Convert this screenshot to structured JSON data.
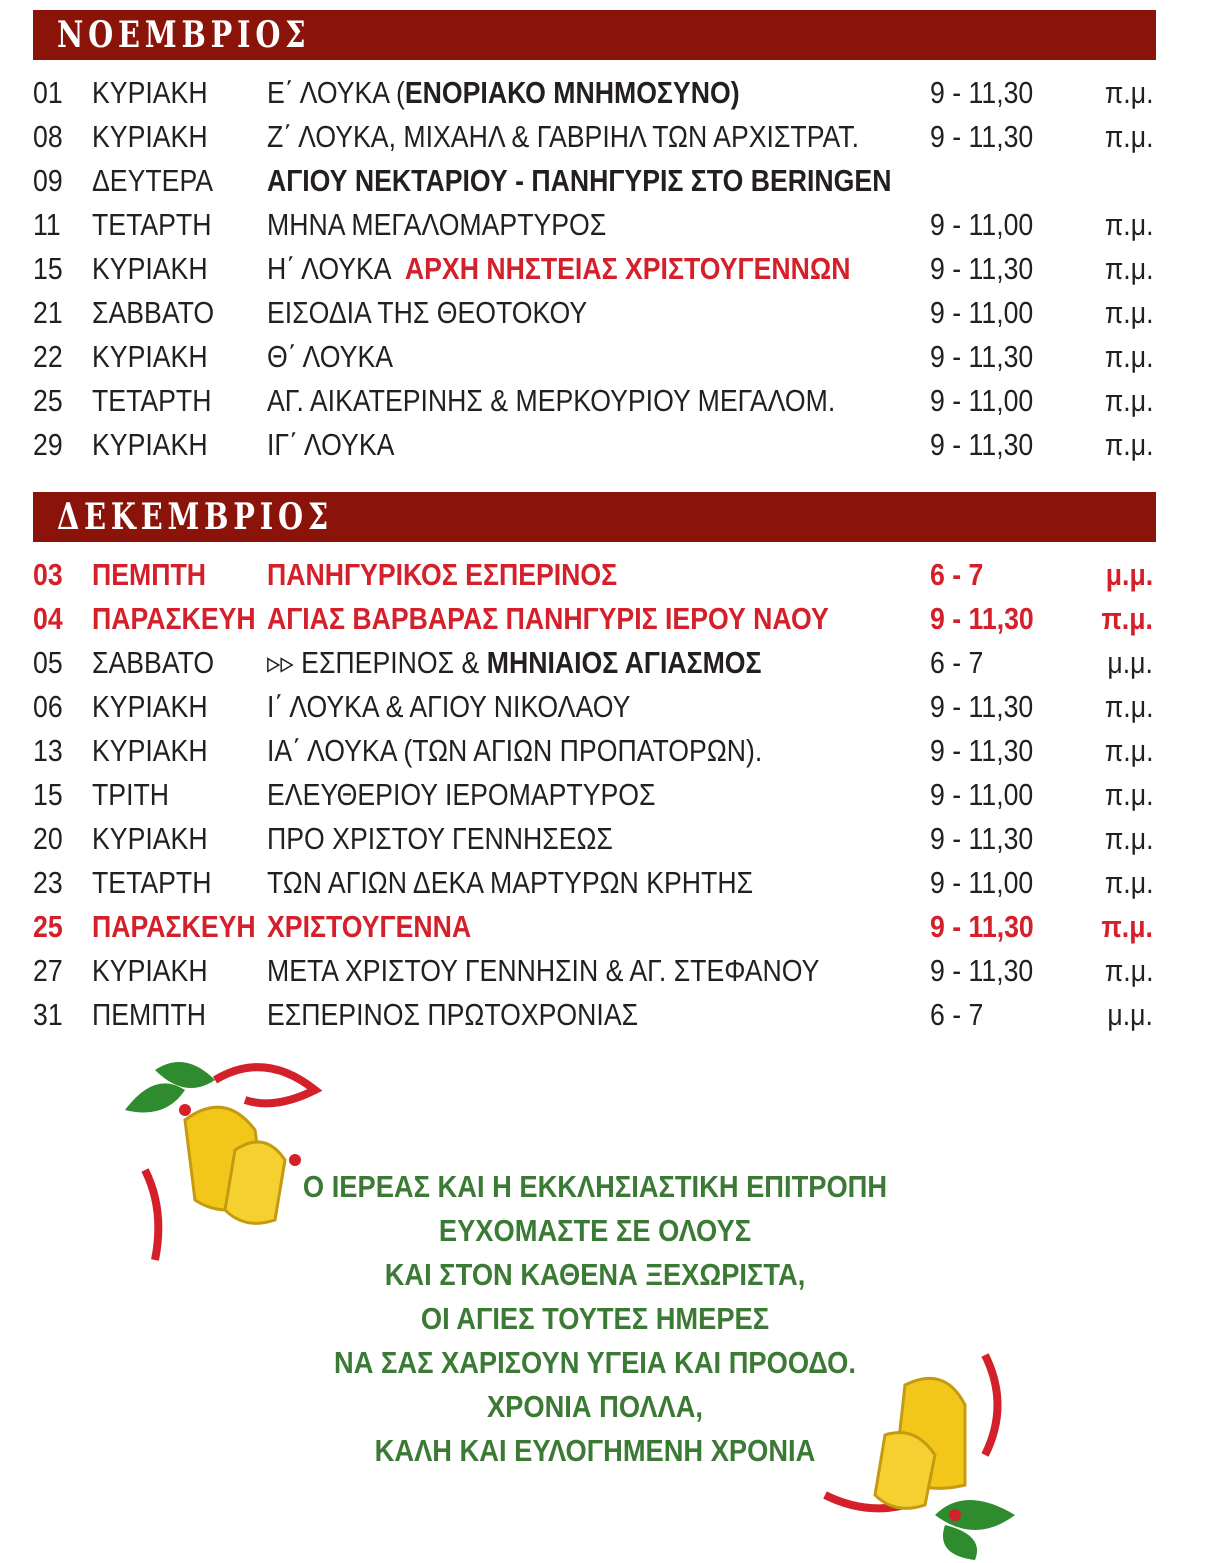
{
  "november": {
    "title": "ΝΟΕΜΒΡΙΟΣ",
    "rows": [
      {
        "day": "01",
        "weekday": "ΚΥΡΙΑΚΗ",
        "desc": [
          {
            "t": "Ε΄ ΛΟΥΚΑ ("
          },
          {
            "t": "ΕΝΟΡΙΑΚΟ ΜΝΗΜΟΣΥΝΟ)",
            "s": "b"
          }
        ],
        "time": "9 - 11,30",
        "ampm": "π.μ."
      },
      {
        "day": "08",
        "weekday": "ΚΥΡΙΑΚΗ",
        "desc": [
          {
            "t": "Ζ΄ ΛΟΥΚΑ, ΜΙΧΑΗΛ & ΓΑΒΡΙΗΛ ΤΩΝ ΑΡΧΙΣΤΡΑΤ."
          }
        ],
        "time": "9 - 11,30",
        "ampm": "π.μ."
      },
      {
        "day": "09",
        "weekday": "ΔΕΥΤΕΡΑ",
        "desc": [
          {
            "t": "ΑΓΙΟΥ ΝΕΚΤΑΡΙΟΥ - ΠΑΝΗΓΥΡΙΣ ΣΤΟ BERINGEN",
            "s": "b"
          }
        ],
        "time": "",
        "ampm": ""
      },
      {
        "day": "11",
        "weekday": "ΤΕΤΑΡΤΗ",
        "desc": [
          {
            "t": "ΜΗΝΑ ΜΕΓΑΛΟΜΑΡΤΥΡΟΣ"
          }
        ],
        "time": "9 - 11,00",
        "ampm": "π.μ."
      },
      {
        "day": "15",
        "weekday": "ΚΥΡΙΑΚΗ",
        "desc": [
          {
            "t": "Η΄ ΛΟΥΚΑ  "
          },
          {
            "t": "ΑΡΧΗ ΝΗΣΤΕΙΑΣ ΧΡΙΣΤΟΥΓΕΝΝΩΝ",
            "s": "red"
          }
        ],
        "time": "9 - 11,30",
        "ampm": "π.μ."
      },
      {
        "day": "21",
        "weekday": "ΣΑΒΒΑΤΟ",
        "desc": [
          {
            "t": "ΕΙΣΟΔΙΑ ΤΗΣ ΘΕΟΤΟΚΟΥ"
          }
        ],
        "time": "9 - 11,00",
        "ampm": "π.μ."
      },
      {
        "day": "22",
        "weekday": "ΚΥΡΙΑΚΗ",
        "desc": [
          {
            "t": "Θ΄ ΛΟΥΚΑ"
          }
        ],
        "time": "9 - 11,30",
        "ampm": "π.μ."
      },
      {
        "day": "25",
        "weekday": "ΤΕΤΑΡΤΗ",
        "desc": [
          {
            "t": "ΑΓ. ΑΙΚΑΤΕΡΙΝΗΣ & ΜΕΡΚΟΥΡΙΟΥ ΜΕΓΑΛΟΜ."
          }
        ],
        "time": "9 - 11,00",
        "ampm": "π.μ."
      },
      {
        "day": "29",
        "weekday": "ΚΥΡΙΑΚΗ",
        "desc": [
          {
            "t": "ΙΓ΄ ΛΟΥΚΑ"
          }
        ],
        "time": "9 - 11,30",
        "ampm": "π.μ."
      }
    ]
  },
  "december": {
    "title": "ΔΕΚΕΜΒΡΙΟΣ",
    "rows": [
      {
        "day": "03",
        "weekday": "ΠΕΜΠΤΗ",
        "desc": [
          {
            "t": "ΠΑΝΗΓΥΡΙΚΟΣ ΕΣΠΕΡΙΝΟΣ"
          }
        ],
        "time": "6 - 7",
        "ampm": "μ.μ.",
        "highlight": true
      },
      {
        "day": "04",
        "weekday": "ΠΑΡΑΣΚΕΥΗ",
        "desc": [
          {
            "t": "ΑΓΙΑΣ ΒΑΡΒΑΡΑΣ ΠΑΝΗΓΥΡΙΣ ΙΕΡΟΥ ΝΑΟΥ"
          }
        ],
        "time": "9 - 11,30",
        "ampm": "π.μ.",
        "highlight": true
      },
      {
        "day": "05",
        "weekday": "ΣΑΒΒΑΤΟ",
        "desc": [
          {
            "t": "▹▹ ΕΣΠΕΡΙΝΟΣ & "
          },
          {
            "t": "ΜΗΝΙΑΙΟΣ ΑΓΙΑΣΜΟΣ",
            "s": "b"
          }
        ],
        "time": "6 - 7",
        "ampm": "μ.μ."
      },
      {
        "day": "06",
        "weekday": "ΚΥΡΙΑΚΗ",
        "desc": [
          {
            "t": "Ι΄ ΛΟΥΚΑ & ΑΓΙΟΥ ΝΙΚΟΛΑΟΥ"
          }
        ],
        "time": "9 - 11,30",
        "ampm": "π.μ."
      },
      {
        "day": "13",
        "weekday": "ΚΥΡΙΑΚΗ",
        "desc": [
          {
            "t": "ΙΑ΄ ΛΟΥΚΑ (ΤΩΝ ΑΓΙΩΝ ΠΡΟΠΑΤΟΡΩΝ)."
          }
        ],
        "time": "9 - 11,30",
        "ampm": "π.μ."
      },
      {
        "day": "15",
        "weekday": "ΤΡΙΤΗ",
        "desc": [
          {
            "t": "ΕΛΕΥΘΕΡΙΟΥ ΙΕΡΟΜΑΡΤΥΡΟΣ"
          }
        ],
        "time": "9 - 11,00",
        "ampm": "π.μ."
      },
      {
        "day": "20",
        "weekday": "ΚΥΡΙΑΚΗ",
        "desc": [
          {
            "t": "ΠΡΟ ΧΡΙΣΤΟΥ ΓΕΝΝΗΣΕΩΣ"
          }
        ],
        "time": "9 - 11,30",
        "ampm": "π.μ."
      },
      {
        "day": "23",
        "weekday": "ΤΕΤΑΡΤΗ",
        "desc": [
          {
            "t": "ΤΩΝ ΑΓΙΩΝ ΔΕΚΑ ΜΑΡΤΥΡΩΝ ΚΡΗΤΗΣ"
          }
        ],
        "time": "9 - 11,00",
        "ampm": "π.μ."
      },
      {
        "day": "25",
        "weekday": "ΠΑΡΑΣΚΕΥΗ",
        "desc": [
          {
            "t": "ΧΡΙΣΤΟΥΓΕΝΝΑ"
          }
        ],
        "time": "9 - 11,30",
        "ampm": "π.μ.",
        "highlight": true
      },
      {
        "day": "27",
        "weekday": "ΚΥΡΙΑΚΗ",
        "desc": [
          {
            "t": "ΜΕΤΑ ΧΡΙΣΤΟΥ ΓΕΝΝΗΣΙΝ & ΑΓ. ΣΤΕΦΑΝΟΥ"
          }
        ],
        "time": "9 - 11,30",
        "ampm": "π.μ."
      },
      {
        "day": "31",
        "weekday": "ΠΕΜΠΤΗ",
        "desc": [
          {
            "t": "ΕΣΠΕΡΙΝΟΣ ΠΡΩΤΟΧΡΟΝΙΑΣ"
          }
        ],
        "time": "6 - 7",
        "ampm": "μ.μ."
      }
    ]
  },
  "greeting": [
    "Ο ΙΕΡΕΑΣ ΚΑΙ Η ΕΚΚΛΗΣΙΑΣΤΙΚΗ ΕΠΙΤΡΟΠΗ",
    "ΕΥΧΟΜΑΣΤΕ ΣΕ ΟΛΟΥΣ",
    "ΚΑΙ ΣΤΟΝ ΚΑΘΕΝΑ ΞΕΧΩΡΙΣΤΑ,",
    "ΟΙ ΑΓΙΕΣ ΤΟΥΤΕΣ ΗΜΕΡΕΣ",
    "ΝΑ ΣΑΣ ΧΑΡΙΣΟΥΝ ΥΓΕΙΑ ΚΑΙ ΠΡΟΟΔΟ.",
    "ΧΡΟΝΙΑ ΠΟΛΛΑ,",
    "ΚΑΛΗ ΚΑΙ ΕΥΛΟΓΗΜΕΝΗ ΧΡΟΝΙΑ"
  ],
  "colors": {
    "header_bar": "#8a1409",
    "highlight": "#d3202a",
    "greeting": "#3b7a34"
  }
}
